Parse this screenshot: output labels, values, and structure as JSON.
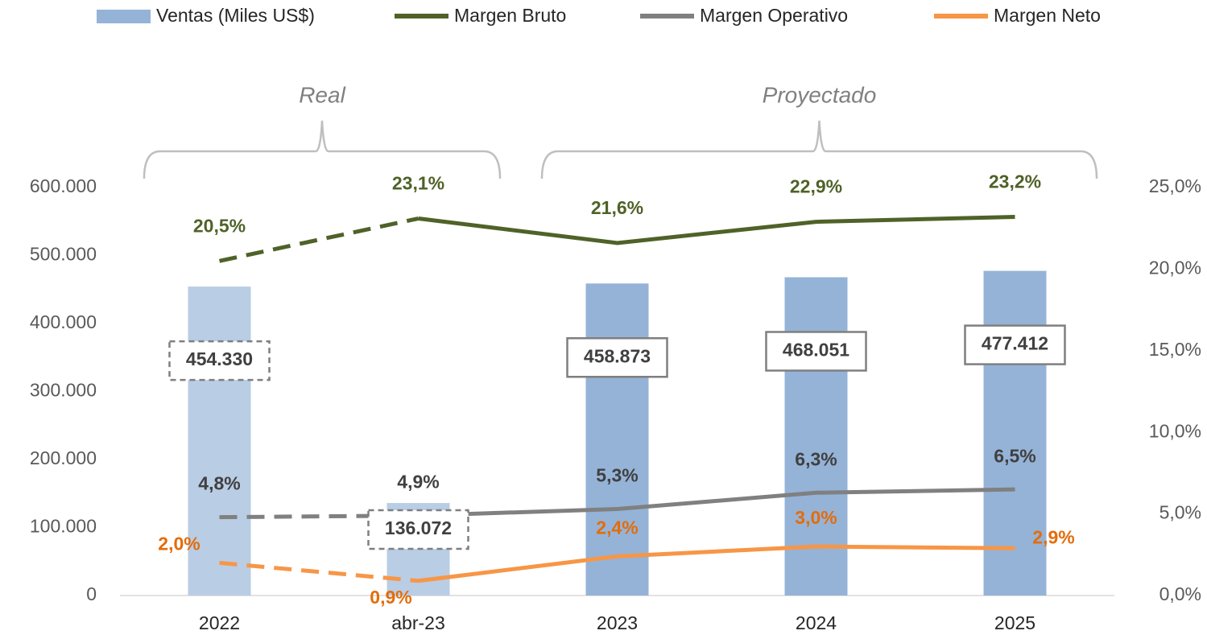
{
  "chart_data": {
    "type": "bar_line",
    "categories": [
      "2022",
      "abr-23",
      "2023",
      "2024",
      "2025"
    ],
    "series": [
      {
        "name": "Ventas (Miles US$)",
        "type": "bar",
        "color": "#95b3d7",
        "colors": [
          "#b9cde5",
          "#b9cde5",
          "#95b3d7",
          "#95b3d7",
          "#95b3d7"
        ],
        "values": [
          454330,
          136072,
          458873,
          468051,
          477412
        ],
        "value_labels": [
          "454.330",
          "136.072",
          "458.873",
          "468.051",
          "477.412"
        ]
      },
      {
        "name": "Margen Bruto",
        "type": "line",
        "axis": "y2",
        "color": "#4f6228",
        "label_color": "#4f6228",
        "values": [
          20.5,
          23.1,
          21.6,
          22.9,
          23.2
        ],
        "value_labels": [
          "20,5%",
          "23,1%",
          "21,6%",
          "22,9%",
          "23,2%"
        ]
      },
      {
        "name": "Margen Operativo",
        "type": "line",
        "axis": "y2",
        "color": "#808080",
        "label_color": "#404040",
        "values": [
          4.8,
          4.9,
          5.3,
          6.3,
          6.5
        ],
        "value_labels": [
          "4,8%",
          "4,9%",
          "5,3%",
          "6,3%",
          "6,5%"
        ]
      },
      {
        "name": "Margen Neto",
        "type": "line",
        "axis": "y2",
        "color": "#f79646",
        "label_color": "#e46c0a",
        "values": [
          2.0,
          0.9,
          2.4,
          3.0,
          2.9
        ],
        "value_labels": [
          "2,0%",
          "0,9%",
          "2,4%",
          "3,0%",
          "2,9%"
        ]
      }
    ],
    "annotations": [
      {
        "text": "Real",
        "span": [
          0,
          1
        ]
      },
      {
        "text": "Proyectado",
        "span": [
          2,
          4
        ]
      }
    ],
    "ylim": [
      0,
      600000
    ],
    "yticks": [
      0,
      {
        "value": 100000,
        "label": "100.000"
      },
      {
        "value": 200000,
        "label": "200.000"
      },
      {
        "value": 300000,
        "label": "300.000"
      },
      {
        "value": 400000,
        "label": "400.000"
      },
      {
        "value": 500000,
        "label": "500.000"
      },
      {
        "value": 600000,
        "label": "600.000"
      }
    ],
    "y2lim": [
      0,
      25
    ],
    "y2ticks": [
      {
        "value": 0,
        "label": "0,0%"
      },
      {
        "value": 5,
        "label": "5,0%"
      },
      {
        "value": 10,
        "label": "10,0%"
      },
      {
        "value": 15,
        "label": "15,0%"
      },
      {
        "value": 20,
        "label": "20,0%"
      },
      {
        "value": 25,
        "label": "25,0%"
      }
    ],
    "legend": "top",
    "grid": false
  }
}
